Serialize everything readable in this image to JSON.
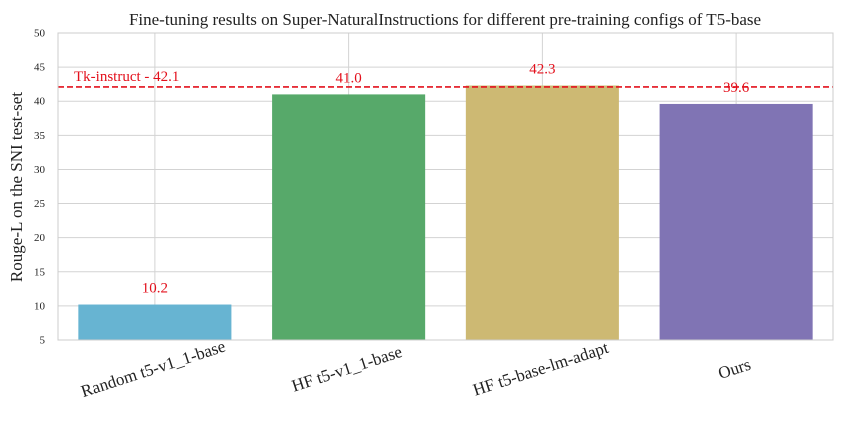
{
  "chart_data": {
    "type": "bar",
    "title": "Fine-tuning results on Super-NaturalInstructions for different pre-training configs of T5-base",
    "xlabel": "",
    "ylabel": "Rouge-L on the SNI test-set",
    "ylim": [
      5,
      50
    ],
    "yticks": [
      5,
      10,
      15,
      20,
      25,
      30,
      35,
      40,
      45,
      50
    ],
    "categories": [
      "Random t5-v1_1-base",
      "HF t5-v1_1-base",
      "HF t5-base-lm-adapt",
      "Ours"
    ],
    "values": [
      10.2,
      41.0,
      42.3,
      39.6
    ],
    "value_labels": [
      "10.2",
      "41.0",
      "42.3",
      "39.6"
    ],
    "bar_colors": [
      "#67b4d2",
      "#57a96a",
      "#cdb973",
      "#8074b4"
    ],
    "reference_line": {
      "value": 42.1,
      "label": "Tk-instruct - 42.1",
      "color": "#e3101c",
      "style": "dashed"
    },
    "value_label_color": "#e3101c",
    "grid": true,
    "legend": "none"
  }
}
